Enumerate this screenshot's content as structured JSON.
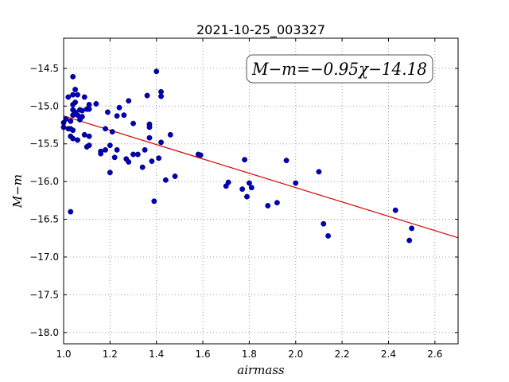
{
  "chart_data": {
    "type": "scatter",
    "title": "2021-10-25_003327",
    "xlabel": "airmass",
    "ylabel": "M−m",
    "xlim": [
      1.0,
      2.7
    ],
    "ylim": [
      -18.15,
      -14.1
    ],
    "y_inverted": true,
    "grid": true,
    "xticks": [
      1.0,
      1.2,
      1.4,
      1.6,
      1.8,
      2.0,
      2.2,
      2.4,
      2.6
    ],
    "xtick_labels": [
      "1.0",
      "1.2",
      "1.4",
      "1.6",
      "1.8",
      "2.0",
      "2.2",
      "2.4",
      "2.6"
    ],
    "yticks": [
      -14.5,
      -15.0,
      -15.5,
      -16.0,
      -16.5,
      -17.0,
      -17.5,
      -18.0
    ],
    "ytick_labels": [
      "−14.5",
      "−15.0",
      "−15.5",
      "−16.0",
      "−16.5",
      "−17.0",
      "−17.5",
      "−18.0"
    ],
    "annotation": "M−m=−0.95χ−14.18",
    "annotation_position": "top-right",
    "fit": {
      "slope": -0.95,
      "intercept": -14.18,
      "color": "#dd0000"
    },
    "point_color": "#0000bb",
    "points": [
      [
        1.0,
        -15.22
      ],
      [
        1.0,
        -15.28
      ],
      [
        1.01,
        -15.17
      ],
      [
        1.02,
        -15.3
      ],
      [
        1.02,
        -14.88
      ],
      [
        1.03,
        -15.2
      ],
      [
        1.03,
        -15.3
      ],
      [
        1.03,
        -15.4
      ],
      [
        1.03,
        -16.4
      ],
      [
        1.04,
        -15.05
      ],
      [
        1.04,
        -14.98
      ],
      [
        1.04,
        -14.85
      ],
      [
        1.04,
        -15.12
      ],
      [
        1.04,
        -15.32
      ],
      [
        1.04,
        -15.43
      ],
      [
        1.04,
        -14.61
      ],
      [
        1.05,
        -14.78
      ],
      [
        1.05,
        -14.95
      ],
      [
        1.05,
        -15.08
      ],
      [
        1.06,
        -14.85
      ],
      [
        1.06,
        -15.12
      ],
      [
        1.06,
        -15.45
      ],
      [
        1.07,
        -15.05
      ],
      [
        1.07,
        -15.18
      ],
      [
        1.08,
        -15.14
      ],
      [
        1.08,
        -15.06
      ],
      [
        1.09,
        -15.38
      ],
      [
        1.09,
        -14.88
      ],
      [
        1.1,
        -15.54
      ],
      [
        1.1,
        -15.04
      ],
      [
        1.11,
        -14.98
      ],
      [
        1.11,
        -15.04
      ],
      [
        1.11,
        -15.52
      ],
      [
        1.11,
        -15.4
      ],
      [
        1.14,
        -14.97
      ],
      [
        1.16,
        -15.6
      ],
      [
        1.16,
        -15.63
      ],
      [
        1.18,
        -15.3
      ],
      [
        1.18,
        -15.58
      ],
      [
        1.19,
        -15.08
      ],
      [
        1.2,
        -15.88
      ],
      [
        1.2,
        -15.52
      ],
      [
        1.21,
        -15.34
      ],
      [
        1.22,
        -15.68
      ],
      [
        1.23,
        -15.13
      ],
      [
        1.23,
        -15.58
      ],
      [
        1.24,
        -15.02
      ],
      [
        1.26,
        -15.12
      ],
      [
        1.27,
        -15.7
      ],
      [
        1.28,
        -14.93
      ],
      [
        1.28,
        -15.74
      ],
      [
        1.3,
        -15.23
      ],
      [
        1.3,
        -15.64
      ],
      [
        1.32,
        -15.64
      ],
      [
        1.34,
        -15.81
      ],
      [
        1.35,
        -15.58
      ],
      [
        1.36,
        -14.86
      ],
      [
        1.37,
        -15.24
      ],
      [
        1.37,
        -15.28
      ],
      [
        1.37,
        -15.42
      ],
      [
        1.38,
        -15.73
      ],
      [
        1.39,
        -16.26
      ],
      [
        1.4,
        -14.54
      ],
      [
        1.41,
        -15.69
      ],
      [
        1.42,
        -14.81
      ],
      [
        1.42,
        -14.87
      ],
      [
        1.42,
        -15.48
      ],
      [
        1.44,
        -15.98
      ],
      [
        1.46,
        -15.38
      ],
      [
        1.48,
        -15.93
      ],
      [
        1.58,
        -15.64
      ],
      [
        1.59,
        -15.65
      ],
      [
        1.7,
        -16.06
      ],
      [
        1.71,
        -16.01
      ],
      [
        1.77,
        -16.1
      ],
      [
        1.78,
        -15.71
      ],
      [
        1.79,
        -16.2
      ],
      [
        1.8,
        -16.02
      ],
      [
        1.81,
        -16.08
      ],
      [
        1.88,
        -16.32
      ],
      [
        1.92,
        -16.28
      ],
      [
        1.96,
        -15.72
      ],
      [
        2.0,
        -16.02
      ],
      [
        2.1,
        -15.87
      ],
      [
        2.12,
        -16.56
      ],
      [
        2.14,
        -16.72
      ],
      [
        2.43,
        -16.38
      ],
      [
        2.49,
        -16.78
      ],
      [
        2.5,
        -16.62
      ]
    ]
  }
}
